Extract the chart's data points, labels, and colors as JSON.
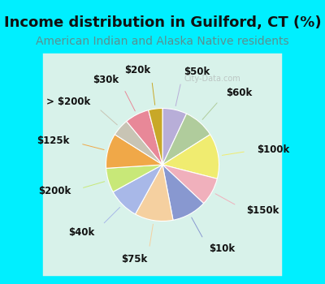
{
  "title": "Income distribution in Guilford, CT (%)",
  "subtitle": "American Indian and Alaska Native residents",
  "watermark": "City-Data.com",
  "background_color": "#00efff",
  "chart_bg_outer": "#b0e8e0",
  "chart_bg_inner": "#e8f8f0",
  "labels": [
    "$50k",
    "$60k",
    "$100k",
    "$150k",
    "$10k",
    "$75k",
    "$40k",
    "$200k",
    "$125k",
    "> $200k",
    "$30k",
    "$20k"
  ],
  "values": [
    7,
    9,
    13,
    8,
    10,
    11,
    9,
    7,
    10,
    5,
    7,
    4
  ],
  "colors": [
    "#b8aed8",
    "#b0cc9c",
    "#f0ec70",
    "#f0b0bc",
    "#8898d0",
    "#f5d0a0",
    "#a8b8e8",
    "#c8e878",
    "#f0a848",
    "#c8c4b4",
    "#e88898",
    "#c8a828"
  ],
  "title_fontsize": 13,
  "subtitle_fontsize": 10,
  "label_fontsize": 8.5
}
